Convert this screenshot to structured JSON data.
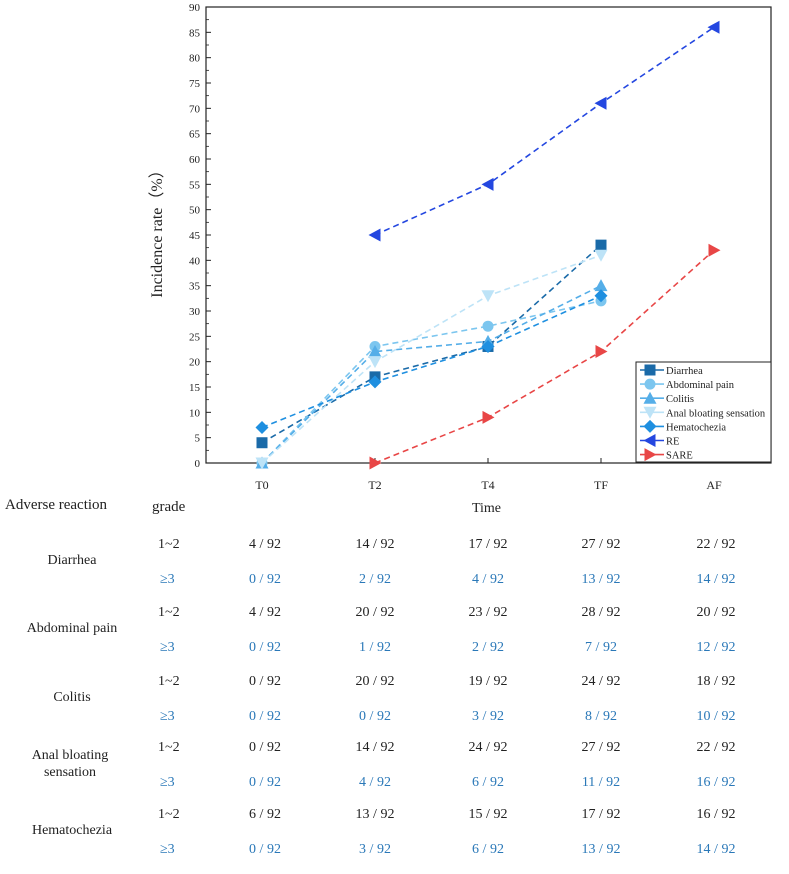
{
  "chart_data": {
    "type": "line",
    "title": "",
    "xlabel": "Time",
    "ylabel": "Incidence rate（%）",
    "categories": [
      "T0",
      "T2",
      "T4",
      "TF",
      "AF"
    ],
    "ylim": [
      0,
      90
    ],
    "yticks": [
      0,
      5,
      10,
      15,
      20,
      25,
      30,
      35,
      40,
      45,
      50,
      55,
      60,
      65,
      70,
      75,
      80,
      85,
      90
    ],
    "legend_position": "bottom-right",
    "series": [
      {
        "name": "Diarrhea",
        "values": [
          4,
          17,
          23,
          43,
          null
        ],
        "color": "#1a6aa8",
        "marker": "square"
      },
      {
        "name": "Abdominal pain",
        "values": [
          0,
          23,
          27,
          32,
          null
        ],
        "color": "#7cc6ef",
        "marker": "circle"
      },
      {
        "name": "Colitis",
        "values": [
          0,
          22,
          24,
          35,
          null
        ],
        "color": "#55aee8",
        "marker": "triangle-up"
      },
      {
        "name": "Anal bloating sensation",
        "values": [
          0,
          20,
          33,
          41,
          null
        ],
        "color": "#bde3f7",
        "marker": "triangle-down"
      },
      {
        "name": "Hematochezia",
        "values": [
          7,
          16,
          23,
          33,
          null
        ],
        "color": "#1e8fe0",
        "marker": "diamond"
      },
      {
        "name": "RE",
        "values": [
          null,
          45,
          55,
          71,
          86
        ],
        "color": "#2447e0",
        "marker": "triangle-left"
      },
      {
        "name": "SARE",
        "values": [
          null,
          0,
          9,
          22,
          42
        ],
        "color": "#e84646",
        "marker": "triangle-right"
      }
    ]
  },
  "table": {
    "header_reaction": "Adverse reaction",
    "header_grade": "grade",
    "rows": [
      {
        "name": "Diarrhea",
        "g1_label": "1~2",
        "g1": [
          "4 / 92",
          "14 / 92",
          "17 / 92",
          "27 / 92",
          "22 / 92"
        ],
        "g3_label": "≥3",
        "g3": [
          "0 / 92",
          "2 / 92",
          "4 / 92",
          "13 / 92",
          "14 / 92"
        ]
      },
      {
        "name": "Abdominal pain",
        "g1_label": "1~2",
        "g1": [
          "4 / 92",
          "20 / 92",
          "23 / 92",
          "28 / 92",
          "20 / 92"
        ],
        "g3_label": "≥3",
        "g3": [
          "0 / 92",
          "1 / 92",
          "2 / 92",
          "7 / 92",
          "12 / 92"
        ]
      },
      {
        "name": "Colitis",
        "g1_label": "1~2",
        "g1": [
          "0 / 92",
          "20 / 92",
          "19 / 92",
          "24 / 92",
          "18 / 92"
        ],
        "g3_label": "≥3",
        "g3": [
          "0 / 92",
          "0 / 92",
          "3 / 92",
          "8 / 92",
          "10 / 92"
        ]
      },
      {
        "name": "Anal bloating sensation",
        "g1_label": "1~2",
        "g1": [
          "0 / 92",
          "14 / 92",
          "24 / 92",
          "27 / 92",
          "22 / 92"
        ],
        "g3_label": "≥3",
        "g3": [
          "0 / 92",
          "4 / 92",
          "6 / 92",
          "11 / 92",
          "16 / 92"
        ]
      },
      {
        "name": "Hematochezia",
        "g1_label": "1~2",
        "g1": [
          "6 / 92",
          "13 / 92",
          "15 / 92",
          "17 / 92",
          "16 / 92"
        ],
        "g3_label": "≥3",
        "g3": [
          "0 / 92",
          "3 / 92",
          "6 / 92",
          "13 / 92",
          "14 / 92"
        ]
      }
    ]
  }
}
